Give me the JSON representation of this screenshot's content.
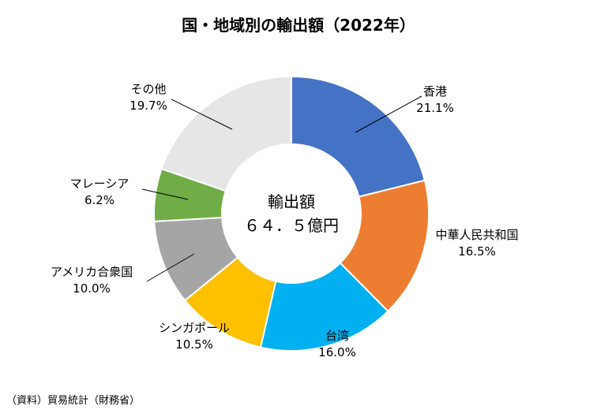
{
  "chart_data": {
    "type": "pie",
    "title": "国・地域別の輸出額（2022年）",
    "center_label": {
      "line1": "輸出額",
      "line2": "６４．５億円"
    },
    "slices": [
      {
        "name": "香港",
        "value": 21.1,
        "label": "21.1%",
        "color": "#4472C4"
      },
      {
        "name": "中華人民共和国",
        "value": 16.5,
        "label": "16.5%",
        "color": "#ED7D31"
      },
      {
        "name": "台湾",
        "value": 16.0,
        "label": "16.0%",
        "color": "#00B0F0"
      },
      {
        "name": "シンガポール",
        "value": 10.5,
        "label": "10.5%",
        "color": "#FFC000"
      },
      {
        "name": "アメリカ合衆国",
        "value": 10.0,
        "label": "10.0%",
        "color": "#A5A5A5"
      },
      {
        "name": "マレーシア",
        "value": 6.2,
        "label": "6.2%",
        "color": "#70AD47"
      },
      {
        "name": "その他",
        "value": 19.7,
        "label": "19.7%",
        "color": "#E7E6E6"
      }
    ]
  },
  "source": "（資料）貿易統計（財務省）"
}
